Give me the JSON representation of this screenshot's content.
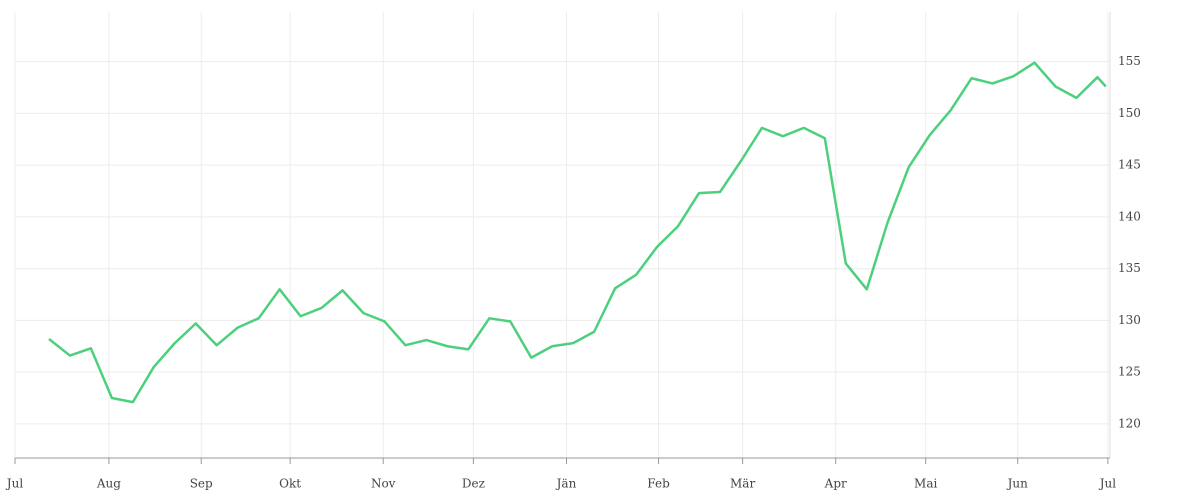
{
  "chart_data": {
    "type": "line",
    "x": [
      0,
      1,
      2,
      3,
      4,
      5,
      6,
      7,
      8,
      9,
      10,
      11,
      12,
      13,
      14,
      15,
      16,
      17,
      18,
      19,
      20,
      21,
      22,
      23,
      24,
      25,
      26,
      27,
      28,
      29,
      30,
      31,
      32,
      33,
      34,
      35,
      36,
      37,
      38,
      39,
      40,
      41,
      42,
      43,
      44,
      45,
      46,
      47,
      48,
      49,
      50,
      50.4
    ],
    "series": [
      {
        "color": "#4cd07d",
        "values": [
          128.2,
          126.6,
          127.3,
          122.5,
          122.1,
          125.5,
          127.8,
          129.7,
          127.6,
          129.3,
          130.2,
          133.0,
          130.4,
          131.2,
          132.9,
          130.7,
          129.9,
          127.6,
          128.1,
          127.5,
          127.2,
          130.2,
          129.9,
          126.4,
          127.5,
          127.8,
          128.9,
          133.1,
          134.4,
          137.1,
          139.1,
          142.3,
          142.4,
          145.4,
          148.6,
          147.8,
          148.6,
          147.6,
          135.5,
          133.0,
          139.5,
          144.8,
          147.9,
          150.3,
          153.4,
          152.9,
          153.6,
          154.9,
          152.6,
          151.5,
          153.5,
          152.6
        ]
      }
    ],
    "xlim": [
      -1.62,
      50.6
    ],
    "xticks": [
      {
        "value": -1.62,
        "label": "Jul"
      },
      {
        "value": 2.86,
        "label": "Aug"
      },
      {
        "value": 7.26,
        "label": "Sep"
      },
      {
        "value": 11.5,
        "label": "Okt"
      },
      {
        "value": 15.94,
        "label": "Nov"
      },
      {
        "value": 20.24,
        "label": "Dez"
      },
      {
        "value": 24.68,
        "label": "Jän"
      },
      {
        "value": 29.07,
        "label": "Feb"
      },
      {
        "value": 33.08,
        "label": "Mär"
      },
      {
        "value": 37.52,
        "label": "Apr"
      },
      {
        "value": 41.81,
        "label": "Mai"
      },
      {
        "value": 46.2,
        "label": "Jun"
      },
      {
        "value": 50.5,
        "label": "Jul"
      }
    ],
    "ylim": [
      116.7,
      159.8
    ],
    "yticks": [
      120,
      125,
      130,
      135,
      140,
      145,
      150,
      155
    ],
    "grid": true
  }
}
